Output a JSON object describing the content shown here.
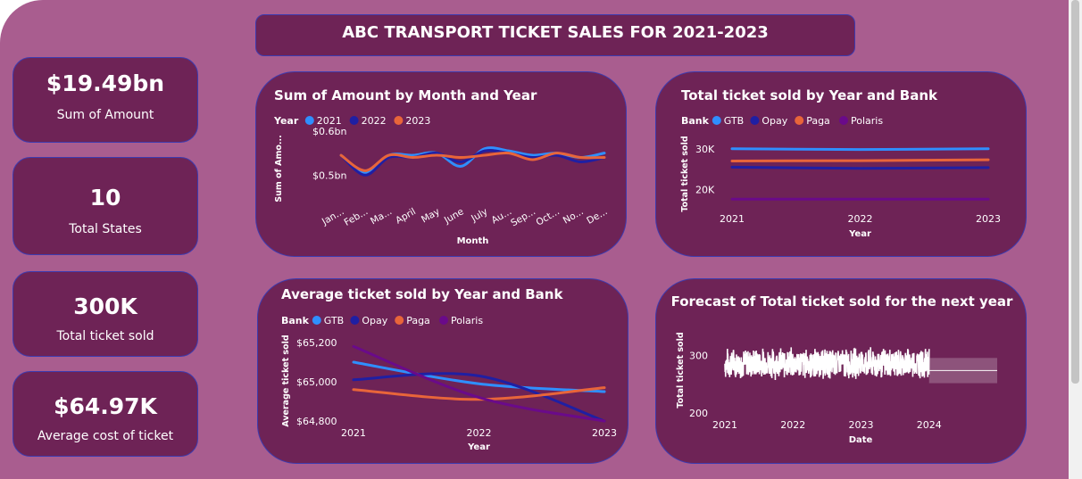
{
  "dashboard_title": "ABC TRANSPORT TICKET SALES FOR 2021-2023",
  "kpis": [
    {
      "value": "$19.49bn",
      "label": "Sum of Amount"
    },
    {
      "value": "10",
      "label": "Total States"
    },
    {
      "value": "300K",
      "label": "Total ticket sold"
    },
    {
      "value": "$64.97K",
      "label": "Average cost of ticket"
    }
  ],
  "colors": {
    "background": "#a95d8f",
    "panel": "#6e2356",
    "border": "#3d3bb0",
    "2021": "#2f8fff",
    "2022": "#1f1fa3",
    "2023": "#e8653a",
    "GTB": "#2f8fff",
    "Opay": "#1f1fa3",
    "Paga": "#e8653a",
    "Polaris": "#6a0a8a"
  },
  "chart_data": [
    {
      "id": "amount_month_year",
      "type": "line",
      "title": "Sum of Amount by Month and Year",
      "xlabel": "Month",
      "ylabel": "Sum of Amo...",
      "legend_title": "Year",
      "legend_position": "top-left",
      "ytick_labels": [
        "$0.6bn",
        "$0.5bn"
      ],
      "ytick_values": [
        0.6,
        0.5
      ],
      "ylim": [
        0.45,
        0.62
      ],
      "categories": [
        "Jan...",
        "Feb...",
        "Ma...",
        "April",
        "May",
        "June",
        "July",
        "Au...",
        "Sep...",
        "Oct...",
        "No...",
        "De..."
      ],
      "series": [
        {
          "name": "2021",
          "values": [
            0.545,
            0.505,
            0.545,
            0.545,
            0.55,
            0.52,
            0.56,
            0.555,
            0.545,
            0.55,
            0.54,
            0.55
          ]
        },
        {
          "name": "2022",
          "values": [
            0.545,
            0.5,
            0.54,
            0.54,
            0.55,
            0.53,
            0.555,
            0.55,
            0.54,
            0.545,
            0.53,
            0.54
          ]
        },
        {
          "name": "2023",
          "values": [
            0.545,
            0.51,
            0.545,
            0.54,
            0.545,
            0.54,
            0.545,
            0.55,
            0.535,
            0.55,
            0.54,
            0.54
          ]
        }
      ]
    },
    {
      "id": "total_year_bank",
      "type": "line",
      "title": "Total ticket sold by Year and Bank",
      "xlabel": "Year",
      "ylabel": "Total ticket sold",
      "legend_title": "Bank",
      "legend_position": "top-left",
      "ytick_labels": [
        "30K",
        "20K"
      ],
      "ytick_values": [
        30000,
        20000
      ],
      "ylim": [
        16000,
        33000
      ],
      "categories": [
        "2021",
        "2022",
        "2023"
      ],
      "series": [
        {
          "name": "GTB",
          "values": [
            30000,
            29800,
            30000
          ]
        },
        {
          "name": "Opay",
          "values": [
            25500,
            25200,
            25400
          ]
        },
        {
          "name": "Paga",
          "values": [
            27000,
            27100,
            27300
          ]
        },
        {
          "name": "Polaris",
          "values": [
            17700,
            17700,
            17700
          ]
        }
      ]
    },
    {
      "id": "avg_year_bank",
      "type": "line",
      "title": "Average ticket sold by Year and Bank",
      "xlabel": "Year",
      "ylabel": "Average ticket sold",
      "legend_title": "Bank",
      "legend_position": "top-left",
      "ytick_labels": [
        "$65,200",
        "$65,000",
        "$64,800"
      ],
      "ytick_values": [
        65200,
        65000,
        64800
      ],
      "ylim": [
        64800,
        65200
      ],
      "categories": [
        "2021",
        "2022",
        "2023"
      ],
      "series": [
        {
          "name": "GTB",
          "values": [
            65100,
            64990,
            64950
          ]
        },
        {
          "name": "Opay",
          "values": [
            65010,
            65030,
            64800
          ]
        },
        {
          "name": "Paga",
          "values": [
            64960,
            64910,
            64970
          ]
        },
        {
          "name": "Polaris",
          "values": [
            65180,
            64920,
            64800
          ]
        }
      ]
    },
    {
      "id": "forecast",
      "type": "line",
      "title": "Forecast of Total ticket sold for the next year",
      "xlabel": "Date",
      "ylabel": "Total ticket sold",
      "ytick_labels": [
        "300",
        "200"
      ],
      "ytick_values": [
        300,
        200
      ],
      "ylim": [
        200,
        340
      ],
      "xtick_labels": [
        "2021",
        "2022",
        "2023",
        "2024"
      ],
      "x_range": [
        2021,
        2025
      ],
      "actual_range": [
        2021,
        2024
      ],
      "actual_band": [
        257,
        316
      ],
      "forecast_value": 274,
      "forecast_band": [
        252,
        296
      ],
      "forecast_range": [
        2024,
        2025
      ]
    }
  ]
}
